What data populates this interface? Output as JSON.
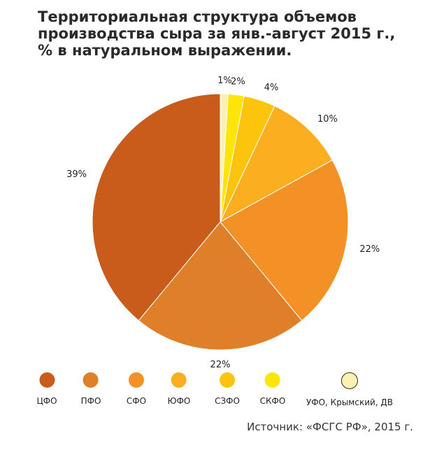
{
  "chart_data": {
    "type": "pie",
    "title_lines": [
      "Территориальная структура объемов",
      "производства сыра за янв.-август 2015 г.,",
      "% в натуральном выражении."
    ],
    "slices": [
      {
        "name": "УФО, Крымский, ДВ",
        "value": 1,
        "label": "1%",
        "color": "#fbf1b3"
      },
      {
        "name": "СКФО",
        "value": 2,
        "label": "2%",
        "color": "#fde409"
      },
      {
        "name": "СЗФО",
        "value": 4,
        "label": "4%",
        "color": "#fcc40d"
      },
      {
        "name": "ЮФО",
        "value": 10,
        "label": "10%",
        "color": "#fbaf20"
      },
      {
        "name": "СФО",
        "value": 22,
        "label": "22%",
        "color": "#f39126"
      },
      {
        "name": "ПФО",
        "value": 22,
        "label": "22%",
        "color": "#e07f2a"
      },
      {
        "name": "ЦФО",
        "value": 39,
        "label": "39%",
        "color": "#c95b1b"
      }
    ],
    "legend": [
      {
        "name": "ЦФО",
        "color": "#c95b1b"
      },
      {
        "name": "ПФО",
        "color": "#e07f2a"
      },
      {
        "name": "СФО",
        "color": "#f39126"
      },
      {
        "name": "ЮФО",
        "color": "#fbaf20"
      },
      {
        "name": "СЗФО",
        "color": "#fcc40d"
      },
      {
        "name": "СКФО",
        "color": "#fde409"
      },
      {
        "name": "УФО, Крымский, ДВ",
        "color": "#fbf1b3"
      }
    ],
    "legend_placement": "bottom",
    "source": "Источник: «ФСГС РФ», 2015 г."
  }
}
